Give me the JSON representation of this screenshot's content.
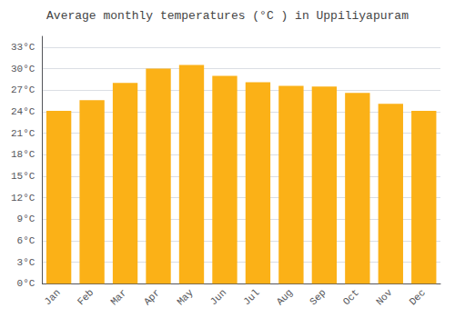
{
  "chart_data": {
    "type": "bar",
    "title": "Average monthly temperatures (°C ) in Uppiliyapuram",
    "categories": [
      "Jan",
      "Feb",
      "Mar",
      "Apr",
      "May",
      "Jun",
      "Jul",
      "Aug",
      "Sep",
      "Oct",
      "Nov",
      "Dec"
    ],
    "values": [
      24.1,
      25.6,
      28.0,
      30.0,
      30.5,
      29.0,
      28.1,
      27.6,
      27.5,
      26.6,
      25.1,
      24.1
    ],
    "color": "#FBB117",
    "ylim": [
      0,
      34.5
    ],
    "yticks": [
      {
        "value": 0,
        "label": "0°C"
      },
      {
        "value": 3,
        "label": "3°C"
      },
      {
        "value": 6,
        "label": "6°C"
      },
      {
        "value": 9,
        "label": "9°C"
      },
      {
        "value": 12,
        "label": "12°C"
      },
      {
        "value": 15,
        "label": "15°C"
      },
      {
        "value": 18,
        "label": "18°C"
      },
      {
        "value": 21,
        "label": "21°C"
      },
      {
        "value": 24,
        "label": "24°C"
      },
      {
        "value": 27,
        "label": "27°C"
      },
      {
        "value": 30,
        "label": "30°C"
      },
      {
        "value": 33,
        "label": "33°C"
      }
    ],
    "grid": true
  }
}
